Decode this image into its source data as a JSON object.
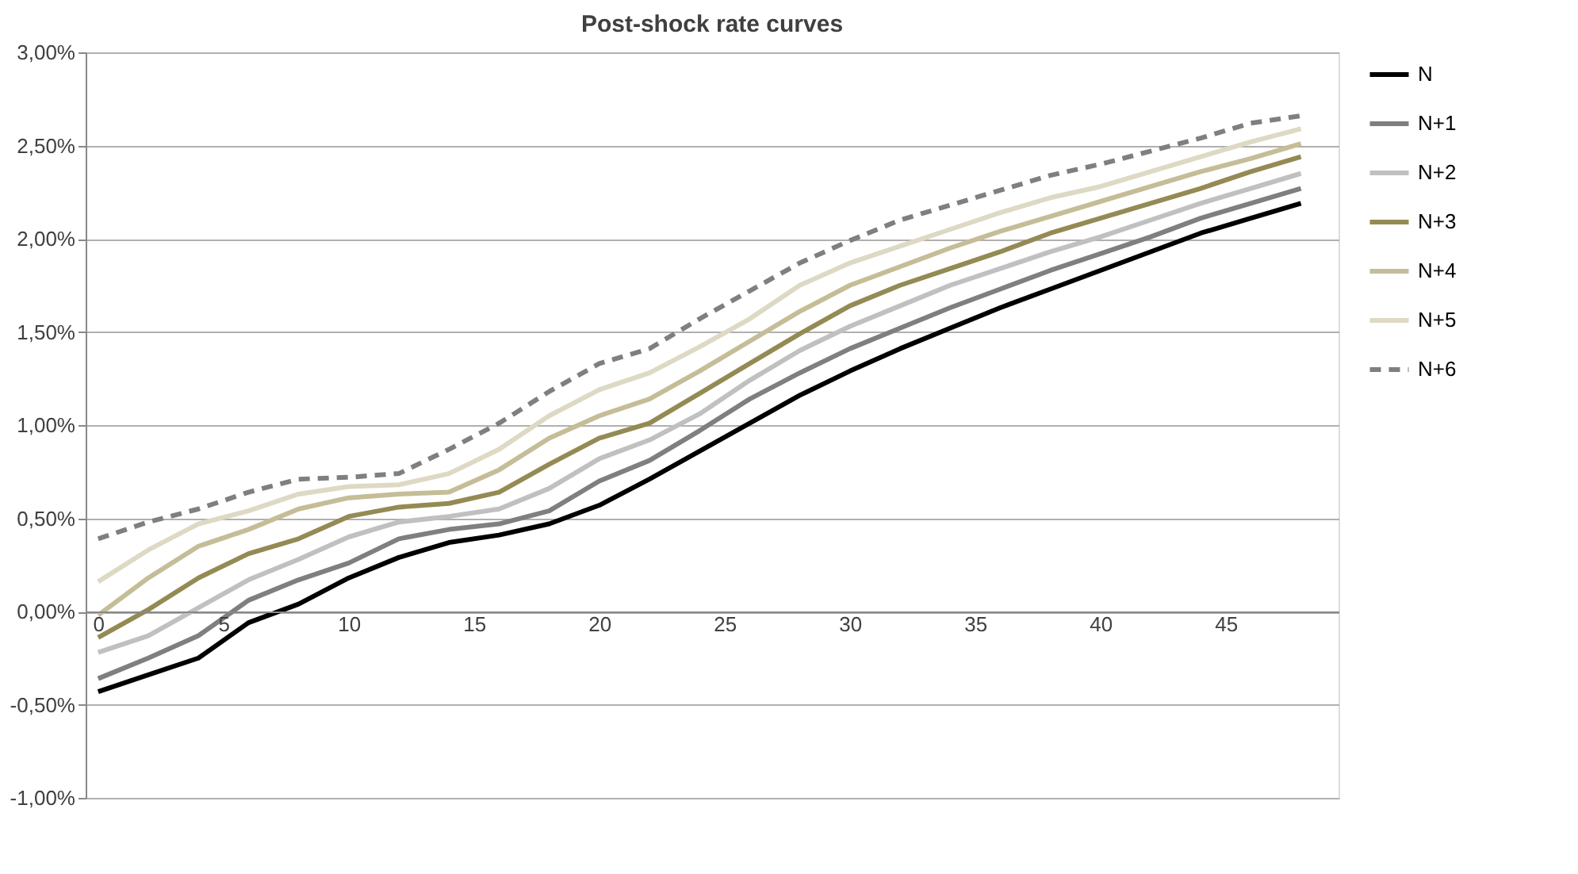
{
  "chart_data": {
    "type": "line",
    "title": "Post-shock rate curves",
    "x": [
      0,
      2,
      4,
      6,
      8,
      10,
      12,
      14,
      16,
      18,
      20,
      22,
      24,
      26,
      28,
      30,
      32,
      34,
      36,
      38,
      40,
      42,
      44,
      46,
      48
    ],
    "series": [
      {
        "name": "N",
        "color": "#000000",
        "line_style": "solid",
        "values": [
          -0.43,
          -0.34,
          -0.25,
          -0.06,
          0.04,
          0.18,
          0.29,
          0.37,
          0.41,
          0.47,
          0.57,
          0.71,
          0.86,
          1.01,
          1.16,
          1.29,
          1.41,
          1.52,
          1.63,
          1.73,
          1.83,
          1.93,
          2.03,
          2.11,
          2.19
        ]
      },
      {
        "name": "N+1",
        "color": "#7f7f7f",
        "line_style": "solid",
        "values": [
          -0.36,
          -0.25,
          -0.13,
          0.06,
          0.17,
          0.26,
          0.39,
          0.44,
          0.47,
          0.54,
          0.7,
          0.81,
          0.97,
          1.14,
          1.28,
          1.41,
          1.52,
          1.63,
          1.73,
          1.83,
          1.92,
          2.01,
          2.11,
          2.19,
          2.27
        ]
      },
      {
        "name": "N+2",
        "color": "#c0c0c0",
        "line_style": "solid",
        "values": [
          -0.22,
          -0.13,
          0.02,
          0.17,
          0.28,
          0.4,
          0.48,
          0.51,
          0.55,
          0.66,
          0.82,
          0.92,
          1.06,
          1.24,
          1.4,
          1.53,
          1.64,
          1.75,
          1.84,
          1.93,
          2.01,
          2.1,
          2.19,
          2.27,
          2.35
        ]
      },
      {
        "name": "N+3",
        "color": "#948a54",
        "line_style": "solid",
        "values": [
          -0.14,
          0.01,
          0.18,
          0.31,
          0.39,
          0.51,
          0.56,
          0.58,
          0.64,
          0.79,
          0.93,
          1.01,
          1.17,
          1.33,
          1.49,
          1.64,
          1.75,
          1.84,
          1.93,
          2.03,
          2.11,
          2.19,
          2.27,
          2.36,
          2.44
        ]
      },
      {
        "name": "N+4",
        "color": "#c4bd97",
        "line_style": "solid",
        "values": [
          -0.02,
          0.18,
          0.35,
          0.44,
          0.55,
          0.61,
          0.63,
          0.64,
          0.76,
          0.93,
          1.05,
          1.14,
          1.29,
          1.45,
          1.61,
          1.75,
          1.85,
          1.95,
          2.04,
          2.12,
          2.2,
          2.28,
          2.36,
          2.43,
          2.51
        ]
      },
      {
        "name": "N+5",
        "color": "#ddd9c3",
        "line_style": "solid",
        "values": [
          0.16,
          0.33,
          0.47,
          0.54,
          0.63,
          0.67,
          0.68,
          0.74,
          0.87,
          1.05,
          1.19,
          1.28,
          1.42,
          1.57,
          1.75,
          1.87,
          1.96,
          2.05,
          2.14,
          2.22,
          2.28,
          2.36,
          2.44,
          2.52,
          2.59
        ]
      },
      {
        "name": "N+6",
        "color": "#7f7f7f",
        "line_style": "dashed",
        "values": [
          0.39,
          0.48,
          0.55,
          0.64,
          0.71,
          0.72,
          0.74,
          0.87,
          1.01,
          1.18,
          1.33,
          1.41,
          1.57,
          1.72,
          1.87,
          1.99,
          2.1,
          2.18,
          2.26,
          2.34,
          2.4,
          2.47,
          2.54,
          2.62,
          2.66
        ]
      }
    ],
    "xlim": [
      -0.5,
      49.5
    ],
    "xticks": [
      0,
      5,
      10,
      15,
      20,
      25,
      30,
      35,
      40,
      45
    ],
    "ylim": [
      -1,
      3
    ],
    "yticks": [
      {
        "value": -1,
        "label": "-1,00%"
      },
      {
        "value": -0.5,
        "label": "-0,50%"
      },
      {
        "value": 0,
        "label": "0,00%"
      },
      {
        "value": 0.5,
        "label": "0,50%"
      },
      {
        "value": 1,
        "label": "1,00%"
      },
      {
        "value": 1.5,
        "label": "1,50%"
      },
      {
        "value": 2,
        "label": "2,00%"
      },
      {
        "value": 2.5,
        "label": "2,50%"
      },
      {
        "value": 3,
        "label": "3,00%"
      }
    ],
    "grid": "y",
    "legend": "right",
    "marker": "none"
  }
}
